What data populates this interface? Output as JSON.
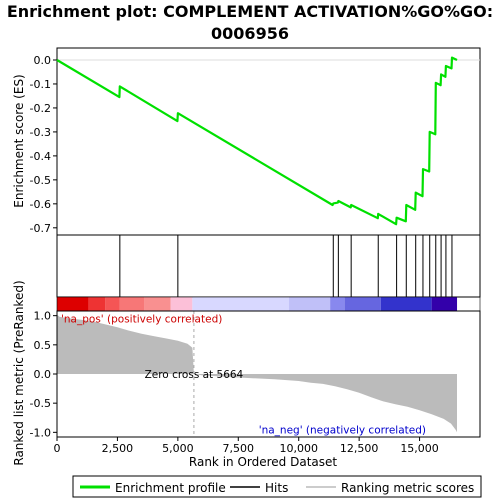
{
  "title_line1": "Enrichment plot: COMPLEMENT ACTIVATION%GO%GO:",
  "title_line2": "0006956",
  "colors": {
    "enrichment_line": "#00e000",
    "hits": "#000000",
    "metric_fill": "#bbbbbb",
    "pos_label": "#cc0000",
    "neg_label": "#0000cc",
    "zero_cross_line": "#aaaaaa"
  },
  "chart_data": [
    {
      "type": "line",
      "name": "enrichment-score-panel",
      "ylabel": "Enrichment score (ES)",
      "xlim": [
        0,
        17500
      ],
      "ylim": [
        -0.73,
        0.05
      ],
      "yticks": [
        0.0,
        -0.1,
        -0.2,
        -0.3,
        -0.4,
        -0.5,
        -0.6,
        -0.7
      ],
      "ytick_labels": [
        "0.0",
        "-0.1",
        "-0.2",
        "-0.3",
        "-0.4",
        "-0.5",
        "-0.6",
        "-0.7"
      ],
      "series": [
        {
          "name": "Enrichment profile",
          "points": [
            [
              0,
              0.0
            ],
            [
              2580,
              -0.155
            ],
            [
              2600,
              -0.11
            ],
            [
              4980,
              -0.255
            ],
            [
              5000,
              -0.222
            ],
            [
              11400,
              -0.605
            ],
            [
              11430,
              -0.598
            ],
            [
              11620,
              -0.595
            ],
            [
              11640,
              -0.588
            ],
            [
              12150,
              -0.615
            ],
            [
              12170,
              -0.605
            ],
            [
              13270,
              -0.66
            ],
            [
              13290,
              -0.642
            ],
            [
              14030,
              -0.685
            ],
            [
              14050,
              -0.658
            ],
            [
              14430,
              -0.673
            ],
            [
              14450,
              -0.605
            ],
            [
              14820,
              -0.625
            ],
            [
              14840,
              -0.553
            ],
            [
              15120,
              -0.568
            ],
            [
              15140,
              -0.455
            ],
            [
              15400,
              -0.465
            ],
            [
              15420,
              -0.3
            ],
            [
              15650,
              -0.31
            ],
            [
              15670,
              -0.095
            ],
            [
              15870,
              -0.105
            ],
            [
              15890,
              -0.06
            ],
            [
              16070,
              -0.07
            ],
            [
              16090,
              -0.025
            ],
            [
              16320,
              -0.035
            ],
            [
              16340,
              0.01
            ],
            [
              16550,
              0.0
            ]
          ]
        }
      ]
    },
    {
      "type": "scatter",
      "name": "hits-panel",
      "series": [
        {
          "name": "Hits",
          "x": [
            2600,
            5000,
            11430,
            11640,
            12170,
            13290,
            14050,
            14450,
            14840,
            15140,
            15420,
            15670,
            15890,
            16090,
            16340
          ]
        }
      ]
    },
    {
      "type": "heatmap",
      "name": "rank-color-bar",
      "segments": [
        {
          "end": 1300,
          "color": "#dd0000"
        },
        {
          "end": 2000,
          "color": "#ee3333"
        },
        {
          "end": 2600,
          "color": "#f55555"
        },
        {
          "end": 3600,
          "color": "#f77777"
        },
        {
          "end": 4700,
          "color": "#f99090"
        },
        {
          "end": 5600,
          "color": "#fcc0d8"
        },
        {
          "end": 9600,
          "color": "#d8d8ff"
        },
        {
          "end": 11300,
          "color": "#c0c0f8"
        },
        {
          "end": 11900,
          "color": "#8888ee"
        },
        {
          "end": 13400,
          "color": "#6666e0"
        },
        {
          "end": 15500,
          "color": "#3333cc"
        },
        {
          "end": 16550,
          "color": "#3300aa"
        }
      ]
    },
    {
      "type": "area",
      "name": "ranked-metric-panel",
      "xlabel": "Rank in Ordered Dataset",
      "ylabel": "Ranked list metric (PreRanked)",
      "xlim": [
        0,
        17500
      ],
      "ylim": [
        -1.08,
        1.08
      ],
      "xticks": [
        0,
        2500,
        5000,
        7500,
        10000,
        12500,
        15000
      ],
      "xtick_labels": [
        "0",
        "2,500",
        "5,000",
        "7,500",
        "10,000",
        "12,500",
        "15,000"
      ],
      "yticks": [
        1.0,
        0.5,
        0.0,
        -0.5,
        -1.0
      ],
      "ytick_labels": [
        "1.0",
        "0.5",
        "0.0",
        "-0.5",
        "-1.0"
      ],
      "series": [
        {
          "name": "Ranking metric scores",
          "points": [
            [
              0,
              1.02
            ],
            [
              100,
              0.98
            ],
            [
              400,
              0.96
            ],
            [
              1000,
              0.93
            ],
            [
              1500,
              0.9
            ],
            [
              2000,
              0.85
            ],
            [
              2500,
              0.8
            ],
            [
              3000,
              0.74
            ],
            [
              3500,
              0.69
            ],
            [
              4000,
              0.65
            ],
            [
              4500,
              0.61
            ],
            [
              5000,
              0.57
            ],
            [
              5400,
              0.52
            ],
            [
              5600,
              0.45
            ],
            [
              5664,
              0.0
            ],
            [
              6000,
              -0.02
            ],
            [
              7000,
              -0.05
            ],
            [
              8000,
              -0.07
            ],
            [
              9000,
              -0.09
            ],
            [
              10000,
              -0.12
            ],
            [
              10500,
              -0.15
            ],
            [
              11000,
              -0.17
            ],
            [
              11500,
              -0.21
            ],
            [
              12000,
              -0.26
            ],
            [
              12500,
              -0.32
            ],
            [
              13000,
              -0.4
            ],
            [
              13500,
              -0.47
            ],
            [
              14000,
              -0.52
            ],
            [
              14500,
              -0.56
            ],
            [
              15000,
              -0.62
            ],
            [
              15500,
              -0.69
            ],
            [
              16000,
              -0.77
            ],
            [
              16300,
              -0.85
            ],
            [
              16500,
              -0.96
            ],
            [
              16550,
              -1.0
            ]
          ]
        }
      ],
      "annotations": {
        "pos": "'na_pos' (positively correlated)",
        "neg": "'na_neg' (negatively correlated)",
        "zero_cross": "Zero cross at 5664",
        "zero_cross_x": 5664
      }
    }
  ],
  "legend": {
    "enrichment": "Enrichment profile",
    "hits": "Hits",
    "metric": "Ranking metric scores"
  }
}
